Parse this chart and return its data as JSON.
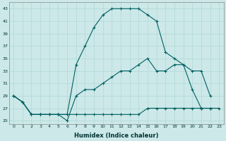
{
  "xlabel": "Humidex (Indice chaleur)",
  "xlim": [
    -0.5,
    23.5
  ],
  "ylim": [
    24.5,
    44
  ],
  "yticks": [
    25,
    27,
    29,
    31,
    33,
    35,
    37,
    39,
    41,
    43
  ],
  "xticks": [
    0,
    1,
    2,
    3,
    4,
    5,
    6,
    7,
    8,
    9,
    10,
    11,
    12,
    13,
    14,
    15,
    16,
    17,
    18,
    19,
    20,
    21,
    22,
    23
  ],
  "bg_color": "#cce8e8",
  "line_color": "#006060",
  "grid_color": "#b0d8d8",
  "line1_x": [
    0,
    1,
    2,
    3,
    4,
    5,
    6,
    7,
    8,
    9,
    10,
    11,
    12,
    13,
    14,
    15,
    16,
    17,
    18,
    19,
    20,
    21,
    22,
    23
  ],
  "line1_y": [
    29,
    28,
    26,
    26,
    26,
    26,
    26,
    26,
    26,
    26,
    26,
    26,
    26,
    26,
    26,
    27,
    27,
    27,
    27,
    27,
    27,
    27,
    27,
    27
  ],
  "line2_x": [
    0,
    1,
    2,
    3,
    4,
    5,
    6,
    7,
    8,
    9,
    10,
    11,
    12,
    13,
    14,
    15,
    16,
    17,
    18,
    19,
    20,
    21,
    22
  ],
  "line2_y": [
    29,
    28,
    26,
    26,
    26,
    26,
    25,
    29,
    30,
    30,
    31,
    32,
    33,
    33,
    34,
    35,
    33,
    33,
    34,
    34,
    33,
    33,
    29
  ],
  "line3_x": [
    0,
    1,
    2,
    3,
    4,
    5,
    6,
    7,
    8,
    9,
    10,
    11,
    12,
    13,
    14,
    15,
    16,
    17,
    18,
    19,
    20,
    21,
    22
  ],
  "line3_y": [
    29,
    28,
    26,
    26,
    26,
    26,
    26,
    34,
    37,
    40,
    42,
    43,
    43,
    43,
    43,
    42,
    41,
    36,
    35,
    34,
    30,
    27,
    27
  ]
}
